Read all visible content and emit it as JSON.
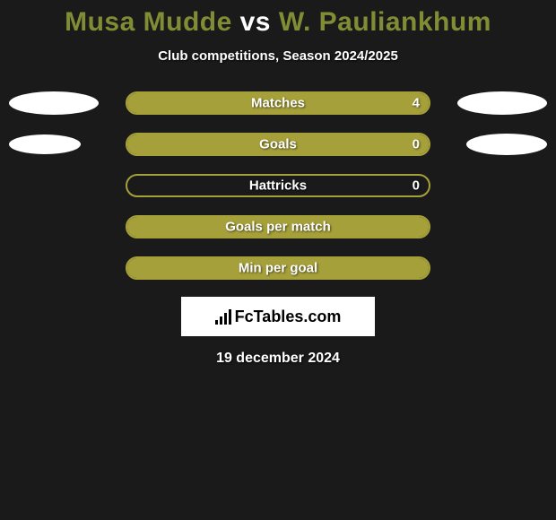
{
  "title": {
    "player1": "Musa Mudde",
    "vs": "vs",
    "player2": "W. Pauliankhum"
  },
  "subtitle": "Club competitions, Season 2024/2025",
  "colors": {
    "background": "#1a1a1a",
    "accent": "#a6a03a",
    "title_player": "#818d34",
    "text": "#ffffff",
    "ellipse": "#ffffff",
    "logo_bg": "#ffffff",
    "logo_fg": "#000000"
  },
  "ellipse_sizes": {
    "row0": {
      "left_w": 100,
      "left_h": 26,
      "right_w": 100,
      "right_h": 26
    },
    "row1": {
      "left_w": 80,
      "left_h": 22,
      "right_w": 90,
      "right_h": 24
    }
  },
  "rows": [
    {
      "label": "Matches",
      "value": "4",
      "fill_pct": 100,
      "show_value": true,
      "left_ellipse": true,
      "right_ellipse": true,
      "ell_key": "row0"
    },
    {
      "label": "Goals",
      "value": "0",
      "fill_pct": 100,
      "show_value": true,
      "left_ellipse": true,
      "right_ellipse": true,
      "ell_key": "row1"
    },
    {
      "label": "Hattricks",
      "value": "0",
      "fill_pct": 0,
      "show_value": true,
      "left_ellipse": false,
      "right_ellipse": false,
      "ell_key": null
    },
    {
      "label": "Goals per match",
      "value": "",
      "fill_pct": 100,
      "show_value": false,
      "left_ellipse": false,
      "right_ellipse": false,
      "ell_key": null
    },
    {
      "label": "Min per goal",
      "value": "",
      "fill_pct": 100,
      "show_value": false,
      "left_ellipse": false,
      "right_ellipse": false,
      "ell_key": null
    }
  ],
  "logo": {
    "text": "FcTables.com"
  },
  "date": "19 december 2024"
}
